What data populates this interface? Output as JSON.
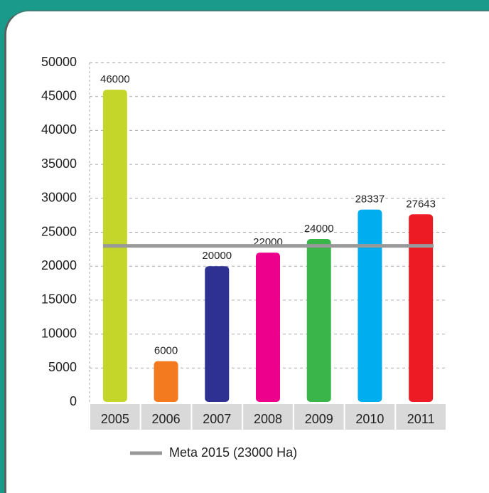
{
  "chart_data": {
    "type": "bar",
    "categories": [
      "2005",
      "2006",
      "2007",
      "2008",
      "2009",
      "2010",
      "2011"
    ],
    "values": [
      46000,
      6000,
      20000,
      22000,
      24000,
      28337,
      27643
    ],
    "colors": [
      "#c5d62a",
      "#f47a20",
      "#2e3192",
      "#ec008c",
      "#39b54a",
      "#00aeef",
      "#ed1c24"
    ],
    "ylim": [
      0,
      50000
    ],
    "yticks": [
      0,
      5000,
      10000,
      15000,
      20000,
      25000,
      30000,
      35000,
      40000,
      45000,
      50000
    ],
    "grid": true,
    "target": {
      "name": "Meta 2015 (23000 Ha)",
      "value": 23000,
      "color": "#999999"
    }
  }
}
